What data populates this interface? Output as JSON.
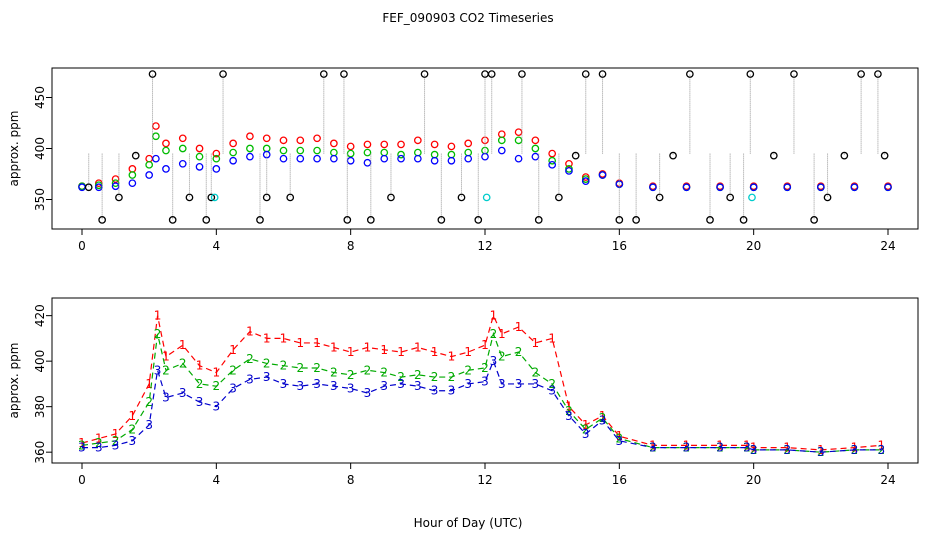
{
  "title": "FEF_090903  CO2 Timeseries",
  "xlabel": "Hour of Day (UTC)",
  "chart_data": [
    {
      "type": "scatter",
      "panel": "top",
      "ylabel": "approx. ppm",
      "xlim": [
        0,
        24
      ],
      "ylim": [
        325,
        475
      ],
      "xticks": [
        "0",
        "4",
        "8",
        "12",
        "16",
        "20",
        "24"
      ],
      "yticks": [
        "350",
        "400",
        "450"
      ],
      "series": [
        {
          "color": "#ff0000",
          "x": [
            0,
            0.5,
            1,
            1.5,
            2,
            2.2,
            2.5,
            3,
            3.5,
            4,
            4.5,
            5,
            5.5,
            6,
            6.5,
            7,
            7.5,
            8,
            8.5,
            9,
            9.5,
            10,
            10.5,
            11,
            11.5,
            12,
            12.5,
            13,
            13.5,
            14,
            14.5,
            15,
            15.5,
            16,
            17,
            18,
            19,
            20,
            21,
            22,
            23,
            24
          ],
          "y": [
            363,
            366,
            370,
            380,
            390,
            422,
            405,
            410,
            400,
            395,
            405,
            412,
            410,
            408,
            408,
            410,
            405,
            402,
            404,
            404,
            404,
            408,
            404,
            402,
            405,
            408,
            414,
            416,
            408,
            395,
            385,
            372,
            375,
            366,
            363,
            363,
            363,
            363,
            363,
            363,
            363,
            363
          ]
        },
        {
          "color": "#00bb00",
          "x": [
            0,
            0.5,
            1,
            1.5,
            2,
            2.2,
            2.5,
            3,
            3.5,
            4,
            4.5,
            5,
            5.5,
            6,
            6.5,
            7,
            7.5,
            8,
            8.5,
            9,
            9.5,
            10,
            10.5,
            11,
            11.5,
            12,
            12.5,
            13,
            13.5,
            14,
            14.5,
            15,
            15.5,
            16,
            17,
            18,
            19,
            20,
            21,
            22,
            23,
            24
          ],
          "y": [
            363,
            364,
            366,
            374,
            384,
            412,
            398,
            400,
            392,
            390,
            396,
            400,
            400,
            398,
            398,
            398,
            396,
            395,
            396,
            396,
            394,
            396,
            394,
            394,
            396,
            398,
            408,
            408,
            400,
            388,
            380,
            370,
            374,
            365,
            362,
            362,
            362,
            362,
            362,
            362,
            362,
            362
          ]
        },
        {
          "color": "#0000ff",
          "x": [
            0,
            0.5,
            1,
            1.5,
            2,
            2.2,
            2.5,
            3,
            3.5,
            4,
            4.5,
            5,
            5.5,
            6,
            6.5,
            7,
            7.5,
            8,
            8.5,
            9,
            9.5,
            10,
            10.5,
            11,
            11.5,
            12,
            12.5,
            13,
            13.5,
            14,
            14.5,
            15,
            15.5,
            16,
            17,
            18,
            19,
            20,
            21,
            22,
            23,
            24
          ],
          "y": [
            362,
            362,
            363,
            366,
            374,
            390,
            380,
            385,
            382,
            380,
            388,
            392,
            394,
            390,
            390,
            390,
            390,
            388,
            386,
            390,
            390,
            390,
            388,
            388,
            390,
            392,
            398,
            390,
            392,
            384,
            378,
            368,
            374,
            365,
            362,
            362,
            362,
            362,
            362,
            362,
            362,
            362
          ]
        },
        {
          "color": "#000000",
          "x": [
            0.2,
            0.6,
            1.1,
            1.6,
            2.1,
            2.7,
            3.2,
            3.7,
            3.85,
            4.2,
            5.3,
            5.5,
            6.2,
            7.2,
            7.8,
            7.9,
            8.6,
            9.2,
            10.2,
            10.7,
            11.3,
            11.8,
            12.0,
            12.2,
            13.1,
            13.6,
            14.2,
            14.7,
            15.0,
            15.5,
            16.0,
            16.5,
            17.2,
            17.6,
            18.1,
            18.7,
            19.3,
            19.7,
            19.9,
            20.6,
            21.2,
            21.8,
            22.2,
            22.7,
            23.2,
            23.7,
            23.9
          ],
          "y": [
            362,
            330,
            352,
            393,
            473,
            330,
            352,
            330,
            352,
            473,
            330,
            352,
            352,
            473,
            473,
            330,
            330,
            352,
            473,
            330,
            352,
            330,
            473,
            473,
            473,
            330,
            352,
            393,
            473,
            473,
            330,
            330,
            352,
            393,
            473,
            330,
            352,
            330,
            473,
            393,
            473,
            330,
            352,
            393,
            473,
            473,
            393
          ]
        },
        {
          "color": "#00cccc",
          "x": [
            3.95,
            12.05,
            19.95
          ],
          "y": [
            352,
            352,
            352
          ]
        }
      ]
    },
    {
      "type": "line",
      "panel": "bottom",
      "ylabel": "approx. ppm",
      "xlim": [
        0,
        24
      ],
      "ylim": [
        357,
        426
      ],
      "xticks": [
        "0",
        "4",
        "8",
        "12",
        "16",
        "20",
        "24"
      ],
      "yticks": [
        "360",
        "380",
        "400",
        "420"
      ],
      "x": [
        0,
        0.5,
        1,
        1.5,
        2,
        2.25,
        2.5,
        3,
        3.5,
        4,
        4.5,
        5,
        5.5,
        6,
        6.5,
        7,
        7.5,
        8,
        8.5,
        9,
        9.5,
        10,
        10.5,
        11,
        11.5,
        12,
        12.25,
        12.5,
        13,
        13.5,
        14,
        14.5,
        15,
        15.5,
        16,
        17,
        18,
        19,
        19.8,
        20,
        21,
        22,
        23,
        23.8
      ],
      "series": [
        {
          "name": "1",
          "color": "#ff0000",
          "values": [
            364,
            366,
            368,
            376,
            390,
            420,
            402,
            407,
            398,
            395,
            405,
            413,
            410,
            410,
            408,
            408,
            406,
            404,
            406,
            405,
            404,
            406,
            404,
            402,
            404,
            407,
            420,
            412,
            415,
            408,
            410,
            380,
            372,
            376,
            367,
            363,
            363,
            363,
            363,
            362,
            362,
            361,
            362,
            363
          ]
        },
        {
          "name": "2",
          "color": "#00aa00",
          "values": [
            363,
            364,
            365,
            370,
            382,
            412,
            396,
            399,
            390,
            389,
            396,
            401,
            399,
            398,
            397,
            397,
            395,
            394,
            396,
            395,
            393,
            394,
            393,
            393,
            396,
            397,
            412,
            402,
            404,
            395,
            390,
            378,
            370,
            375,
            366,
            362,
            362,
            362,
            362,
            361,
            361,
            360,
            361,
            361
          ]
        },
        {
          "name": "3",
          "color": "#0000cc",
          "values": [
            362,
            362,
            363,
            365,
            372,
            396,
            384,
            386,
            382,
            380,
            388,
            392,
            393,
            390,
            389,
            390,
            389,
            388,
            386,
            389,
            390,
            389,
            387,
            387,
            390,
            391,
            400,
            390,
            390,
            390,
            387,
            376,
            368,
            374,
            365,
            362,
            362,
            362,
            362,
            361,
            361,
            360,
            361,
            361
          ]
        }
      ]
    }
  ]
}
